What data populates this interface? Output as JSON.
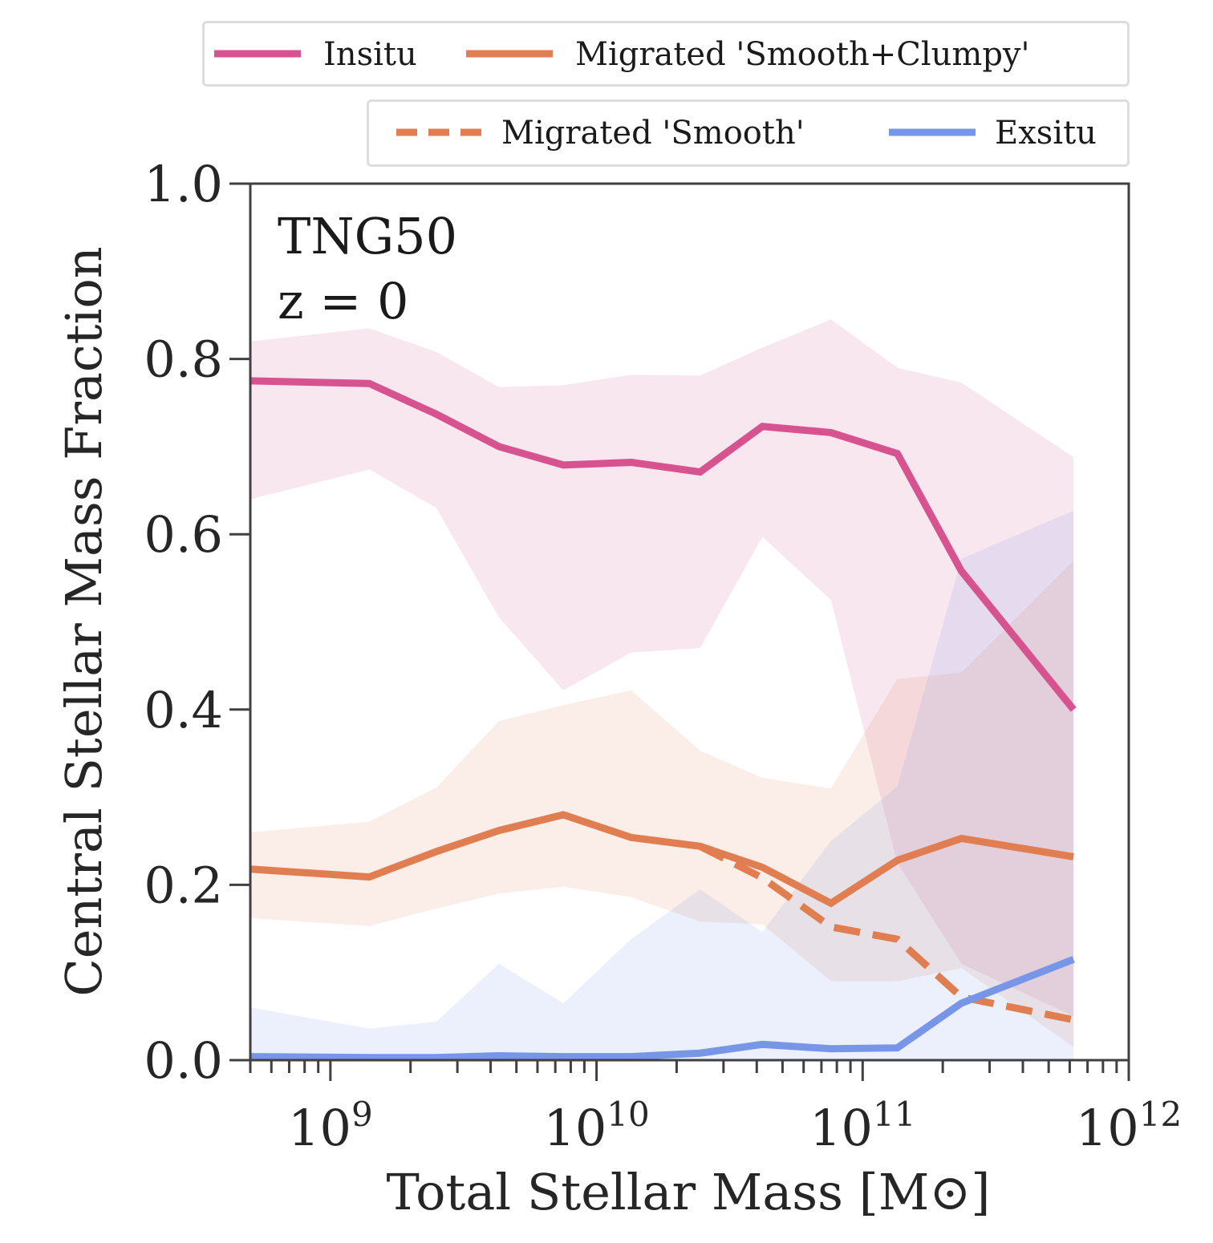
{
  "chart_data": {
    "type": "line",
    "title": "",
    "annotation": {
      "line1": "TNG50",
      "line2": "z = 0"
    },
    "xlabel": "Total Stellar Mass [M⊙]",
    "ylabel": "Central Stellar Mass Fraction",
    "xscale": "log",
    "xlim": [
      500000000,
      1000000000000
    ],
    "ylim": [
      0.0,
      1.0
    ],
    "xticks": [
      {
        "base": "10",
        "exp": "9",
        "value": 1000000000
      },
      {
        "base": "10",
        "exp": "10",
        "value": 10000000000
      },
      {
        "base": "10",
        "exp": "11",
        "value": 100000000000
      },
      {
        "base": "10",
        "exp": "12",
        "value": 1000000000000
      }
    ],
    "yticks": [
      "0.0",
      "0.2",
      "0.4",
      "0.6",
      "0.8",
      "1.0"
    ],
    "grid": false,
    "legend": {
      "placement": "top, above the axes, two rows"
    },
    "x": [
      500000000,
      1400000000,
      2500000000,
      4300000000,
      7500000000,
      13500000000,
      24500000000,
      42000000000,
      76000000000,
      135000000000,
      235000000000,
      620000000000
    ],
    "series": [
      {
        "name": "Insitu",
        "color": "#d6538f",
        "style": "solid",
        "values": [
          0.775,
          0.772,
          0.737,
          0.7,
          0.679,
          0.682,
          0.671,
          0.723,
          0.716,
          0.692,
          0.558,
          0.4
        ],
        "band_low": [
          0.64,
          0.674,
          0.63,
          0.505,
          0.422,
          0.465,
          0.47,
          0.597,
          0.525,
          0.225,
          0.11,
          0.05
        ],
        "band_high": [
          0.82,
          0.835,
          0.808,
          0.768,
          0.77,
          0.782,
          0.781,
          0.813,
          0.845,
          0.79,
          0.773,
          0.688
        ]
      },
      {
        "name": "Migrated 'Smooth+Clumpy'",
        "color": "#e07e52",
        "style": "solid",
        "values": [
          0.218,
          0.209,
          0.238,
          0.262,
          0.28,
          0.254,
          0.244,
          0.22,
          0.179,
          0.228,
          0.253,
          0.232
        ],
        "band_low": [
          0.162,
          0.153,
          0.173,
          0.19,
          0.198,
          0.186,
          0.158,
          0.155,
          0.09,
          0.09,
          0.105,
          0.015
        ],
        "band_high": [
          0.26,
          0.272,
          0.311,
          0.387,
          0.405,
          0.422,
          0.353,
          0.322,
          0.31,
          0.435,
          0.442,
          0.57
        ]
      },
      {
        "name": "Migrated 'Smooth'",
        "color": "#e07e52",
        "style": "dashed",
        "values": [
          null,
          null,
          null,
          null,
          null,
          null,
          0.244,
          0.208,
          0.152,
          0.138,
          0.072,
          0.046
        ]
      },
      {
        "name": "Exsitu",
        "color": "#7896e8",
        "style": "solid",
        "values": [
          0.004,
          0.003,
          0.003,
          0.005,
          0.004,
          0.004,
          0.008,
          0.018,
          0.013,
          0.014,
          0.065,
          0.115
        ],
        "band_low": [
          0.0,
          0.0,
          0.0,
          0.0,
          0.0,
          0.0,
          0.0,
          0.0,
          0.0,
          0.0,
          0.0,
          0.0
        ],
        "band_high": [
          0.06,
          0.036,
          0.044,
          0.11,
          0.065,
          0.138,
          0.195,
          0.146,
          0.25,
          0.312,
          0.572,
          0.627
        ]
      }
    ]
  }
}
